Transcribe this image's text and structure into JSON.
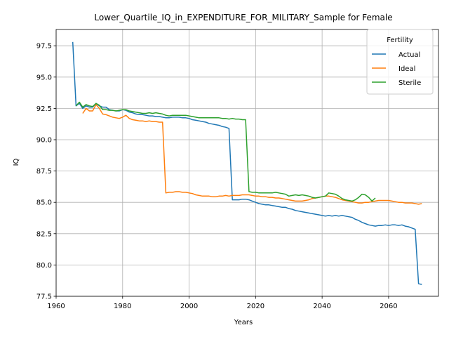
{
  "chart_data": {
    "type": "line",
    "title": "Lower_Quartile_IQ_in_EXPENDITURE_FOR_MILITARY_Sample for Female",
    "xlabel": "Years",
    "ylabel": "IQ",
    "xlim": [
      1960,
      2075
    ],
    "ylim": [
      77.5,
      98.8
    ],
    "xticks": [
      1960,
      1980,
      2000,
      2020,
      2040,
      2060
    ],
    "xtick_labels": [
      "1960",
      "1980",
      "2000",
      "2020",
      "2040",
      "2060"
    ],
    "yticks": [
      77.5,
      80.0,
      82.5,
      85.0,
      87.5,
      90.0,
      92.5,
      95.0,
      97.5
    ],
    "ytick_labels": [
      "77.5",
      "80.0",
      "82.5",
      "85.0",
      "87.5",
      "90.0",
      "92.5",
      "95.0",
      "97.5"
    ],
    "grid": true,
    "legend": {
      "title": "Fertility",
      "placement": "top-right"
    },
    "series": [
      {
        "name": "Actual",
        "color": "#1f77b4",
        "x": [
          1965,
          1966,
          1967,
          1968,
          1969,
          1970,
          1971,
          1972,
          1973,
          1974,
          1975,
          1976,
          1977,
          1978,
          1979,
          1980,
          1981,
          1982,
          1983,
          1984,
          1985,
          1986,
          1987,
          1988,
          1989,
          1990,
          1991,
          1992,
          1993,
          1994,
          1995,
          1996,
          1997,
          1998,
          1999,
          2000,
          2001,
          2002,
          2003,
          2004,
          2005,
          2006,
          2007,
          2008,
          2009,
          2010,
          2011,
          2012,
          2013,
          2014,
          2015,
          2016,
          2017,
          2018,
          2019,
          2020,
          2021,
          2022,
          2023,
          2024,
          2025,
          2026,
          2027,
          2028,
          2029,
          2030,
          2031,
          2032,
          2033,
          2034,
          2035,
          2036,
          2037,
          2038,
          2039,
          2040,
          2041,
          2042,
          2043,
          2044,
          2045,
          2046,
          2047,
          2048,
          2049,
          2050,
          2051,
          2052,
          2053,
          2054,
          2055,
          2056,
          2057,
          2058,
          2059,
          2060,
          2061,
          2062,
          2063,
          2064,
          2065,
          2066,
          2067,
          2068,
          2069,
          2070
        ],
        "values": [
          97.8,
          92.7,
          92.9,
          92.5,
          92.7,
          92.6,
          92.6,
          92.9,
          92.7,
          92.6,
          92.6,
          92.4,
          92.35,
          92.3,
          92.3,
          92.4,
          92.35,
          92.2,
          92.15,
          92.05,
          92.0,
          92.0,
          91.95,
          91.9,
          91.9,
          91.85,
          91.85,
          91.8,
          91.75,
          91.75,
          91.8,
          91.8,
          91.8,
          91.75,
          91.75,
          91.7,
          91.6,
          91.55,
          91.5,
          91.45,
          91.4,
          91.3,
          91.25,
          91.2,
          91.15,
          91.05,
          91.0,
          90.9,
          85.2,
          85.2,
          85.2,
          85.25,
          85.25,
          85.2,
          85.1,
          85.0,
          84.9,
          84.85,
          84.8,
          84.8,
          84.75,
          84.7,
          84.65,
          84.6,
          84.6,
          84.5,
          84.45,
          84.35,
          84.3,
          84.25,
          84.2,
          84.15,
          84.1,
          84.05,
          84.0,
          83.95,
          83.9,
          83.95,
          83.9,
          83.95,
          83.9,
          83.95,
          83.9,
          83.85,
          83.8,
          83.65,
          83.55,
          83.4,
          83.3,
          83.2,
          83.15,
          83.1,
          83.15,
          83.15,
          83.2,
          83.15,
          83.2,
          83.2,
          83.15,
          83.2,
          83.1,
          83.05,
          82.95,
          82.85,
          78.5,
          78.45
        ]
      },
      {
        "name": "Ideal",
        "color": "#ff7f0e",
        "x": [
          1968,
          1969,
          1970,
          1971,
          1972,
          1973,
          1974,
          1975,
          1976,
          1977,
          1978,
          1979,
          1980,
          1981,
          1982,
          1983,
          1984,
          1985,
          1986,
          1987,
          1988,
          1989,
          1990,
          1991,
          1992,
          1993,
          1994,
          1995,
          1996,
          1997,
          1998,
          1999,
          2000,
          2001,
          2002,
          2003,
          2004,
          2005,
          2006,
          2007,
          2008,
          2009,
          2010,
          2011,
          2012,
          2013,
          2014,
          2015,
          2016,
          2017,
          2018,
          2019,
          2020,
          2021,
          2022,
          2023,
          2024,
          2025,
          2026,
          2027,
          2028,
          2029,
          2030,
          2031,
          2032,
          2033,
          2034,
          2035,
          2036,
          2037,
          2038,
          2039,
          2040,
          2041,
          2042,
          2043,
          2044,
          2045,
          2046,
          2047,
          2048,
          2049,
          2050,
          2051,
          2052,
          2053,
          2054,
          2055,
          2056,
          2057,
          2058,
          2059,
          2060,
          2061,
          2062,
          2063,
          2064,
          2065,
          2066,
          2067,
          2068,
          2069,
          2070
        ],
        "values": [
          92.1,
          92.5,
          92.3,
          92.3,
          92.8,
          92.5,
          92.05,
          92.0,
          91.9,
          91.8,
          91.75,
          91.7,
          91.8,
          91.95,
          91.7,
          91.6,
          91.55,
          91.5,
          91.5,
          91.45,
          91.5,
          91.45,
          91.45,
          91.4,
          91.4,
          85.75,
          85.8,
          85.8,
          85.85,
          85.85,
          85.8,
          85.8,
          85.75,
          85.7,
          85.6,
          85.55,
          85.5,
          85.5,
          85.5,
          85.45,
          85.45,
          85.5,
          85.5,
          85.55,
          85.5,
          85.55,
          85.55,
          85.55,
          85.6,
          85.6,
          85.6,
          85.55,
          85.5,
          85.5,
          85.45,
          85.45,
          85.4,
          85.4,
          85.35,
          85.35,
          85.3,
          85.25,
          85.2,
          85.15,
          85.1,
          85.1,
          85.1,
          85.15,
          85.2,
          85.3,
          85.35,
          85.4,
          85.45,
          85.5,
          85.5,
          85.45,
          85.4,
          85.3,
          85.2,
          85.15,
          85.1,
          85.05,
          85.0,
          84.95,
          84.95,
          85.0,
          85.0,
          85.05,
          85.1,
          85.15,
          85.15,
          85.15,
          85.15,
          85.1,
          85.05,
          85.0,
          85.0,
          84.95,
          84.95,
          84.95,
          84.9,
          84.85,
          84.9
        ]
      },
      {
        "name": "Sterile",
        "color": "#2ca02c",
        "x": [
          1966,
          1967,
          1968,
          1969,
          1970,
          1971,
          1972,
          1973,
          1974,
          1975,
          1976,
          1977,
          1978,
          1979,
          1980,
          1981,
          1982,
          1983,
          1984,
          1985,
          1986,
          1987,
          1988,
          1989,
          1990,
          1991,
          1992,
          1993,
          1994,
          1995,
          1996,
          1997,
          1998,
          1999,
          2000,
          2001,
          2002,
          2003,
          2004,
          2005,
          2006,
          2007,
          2008,
          2009,
          2010,
          2011,
          2012,
          2013,
          2014,
          2015,
          2016,
          2017,
          2018,
          2019,
          2020,
          2021,
          2022,
          2023,
          2024,
          2025,
          2026,
          2027,
          2028,
          2029,
          2030,
          2031,
          2032,
          2033,
          2034,
          2035,
          2036,
          2037,
          2038,
          2039,
          2040,
          2041,
          2042,
          2043,
          2044,
          2045,
          2046,
          2047,
          2048,
          2049,
          2050,
          2051,
          2052,
          2053,
          2054,
          2055,
          2056
        ],
        "values": [
          92.7,
          93.0,
          92.6,
          92.8,
          92.7,
          92.65,
          92.9,
          92.75,
          92.4,
          92.4,
          92.35,
          92.35,
          92.3,
          92.35,
          92.4,
          92.4,
          92.3,
          92.25,
          92.2,
          92.15,
          92.1,
          92.1,
          92.15,
          92.1,
          92.15,
          92.1,
          92.05,
          91.95,
          91.9,
          91.95,
          91.95,
          91.95,
          91.95,
          91.95,
          91.9,
          91.85,
          91.8,
          91.75,
          91.75,
          91.75,
          91.75,
          91.75,
          91.75,
          91.75,
          91.7,
          91.7,
          91.65,
          91.7,
          91.65,
          91.65,
          91.6,
          91.6,
          85.85,
          85.8,
          85.8,
          85.75,
          85.75,
          85.75,
          85.75,
          85.75,
          85.8,
          85.75,
          85.7,
          85.65,
          85.5,
          85.55,
          85.6,
          85.55,
          85.6,
          85.55,
          85.5,
          85.4,
          85.35,
          85.4,
          85.45,
          85.5,
          85.75,
          85.7,
          85.65,
          85.5,
          85.3,
          85.2,
          85.15,
          85.1,
          85.2,
          85.4,
          85.65,
          85.6,
          85.4,
          85.1,
          85.35
        ]
      }
    ]
  }
}
